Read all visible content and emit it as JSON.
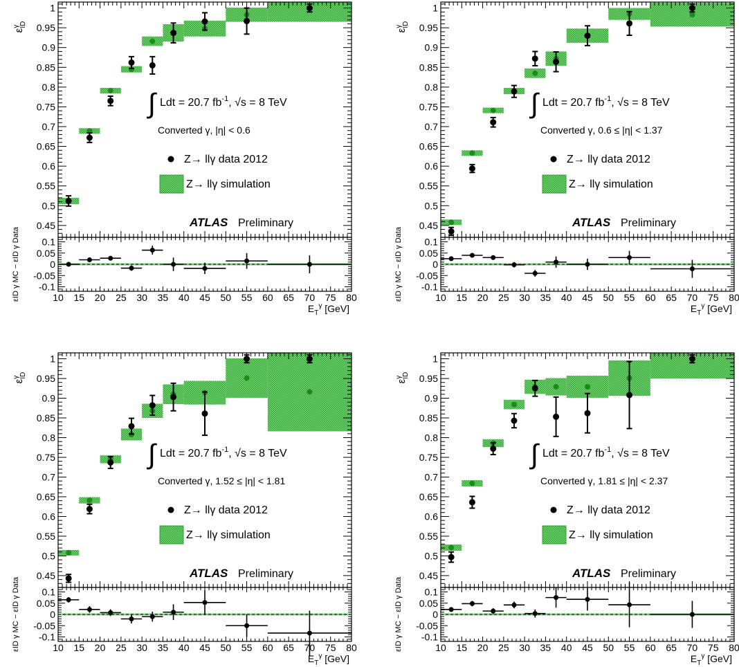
{
  "common": {
    "xlabel": "E_T^γ [GeV]",
    "ylabel_top": "ε_ID^γ",
    "ylabel_bottom": "ε_ID^{γ MC} − ε_ID^{γ Data}",
    "xlim": [
      10,
      80
    ],
    "ylim_top": [
      0.42,
      1.015
    ],
    "ylim_bottom": [
      -0.12,
      0.12
    ],
    "x_ticks": [
      "10",
      "15",
      "20",
      "25",
      "30",
      "35",
      "40",
      "45",
      "50",
      "55",
      "60",
      "65",
      "70",
      "75",
      "80"
    ],
    "y_ticks_top": [
      "0.45",
      "0.5",
      "0.55",
      "0.6",
      "0.65",
      "0.7",
      "0.75",
      "0.8",
      "0.85",
      "0.9",
      "0.95",
      "1"
    ],
    "y_ticks_bottom": [
      "-0.1",
      "-0.05",
      "0",
      "0.05",
      "0.1"
    ],
    "lumi_text": "Ldt = 20.7 fb",
    "lumi_sup": "-1",
    "energy_text": ", √s = 8 TeV",
    "legend_data": "Z→ llγ data 2012",
    "legend_sim": "Z→ llγ simulation",
    "atlas": "ATLAS",
    "preliminary": "Preliminary",
    "colors": {
      "data": "#000000",
      "mc_marker": "#1a8c1a",
      "band": "#6fd46f",
      "band_hatch": "#3aa83a",
      "baseline": "#7fcf7f"
    }
  },
  "chart_data": [
    {
      "type": "scatter",
      "category": "Converted γ, |η| < 0.6",
      "bins": [
        [
          10,
          15
        ],
        [
          15,
          20
        ],
        [
          20,
          25
        ],
        [
          25,
          30
        ],
        [
          30,
          35
        ],
        [
          35,
          40
        ],
        [
          40,
          50
        ],
        [
          50,
          60
        ],
        [
          60,
          80
        ]
      ],
      "x": [
        12.5,
        17.5,
        22.5,
        27.5,
        32.5,
        37.5,
        45,
        55,
        70
      ],
      "series": [
        {
          "name": "Z→ llγ data 2012",
          "values": [
            0.512,
            0.672,
            0.765,
            0.862,
            0.855,
            0.937,
            0.966,
            0.967,
            1.0
          ],
          "errors": [
            0.013,
            0.012,
            0.012,
            0.015,
            0.022,
            0.025,
            0.022,
            0.033,
            0.01
          ]
        },
        {
          "name": "Z→ llγ simulation",
          "values": [
            0.512,
            0.689,
            0.791,
            0.845,
            0.916,
            0.937,
            0.948,
            0.983,
            1.0
          ],
          "errors": [
            0.008,
            0.007,
            0.007,
            0.008,
            0.012,
            0.022,
            0.02,
            0.018,
            0.035
          ]
        }
      ],
      "ratio": {
        "values": [
          0.0,
          0.02,
          0.027,
          -0.017,
          0.063,
          0.0,
          -0.018,
          0.015,
          0.0
        ],
        "errors": [
          0.008,
          0.01,
          0.01,
          0.012,
          0.02,
          0.03,
          0.025,
          0.035,
          0.04
        ]
      }
    },
    {
      "type": "scatter",
      "category": "Converted γ,  0.6 ≤ |η| < 1.37",
      "bins": [
        [
          10,
          15
        ],
        [
          15,
          20
        ],
        [
          20,
          25
        ],
        [
          25,
          30
        ],
        [
          30,
          35
        ],
        [
          35,
          40
        ],
        [
          40,
          50
        ],
        [
          50,
          60
        ],
        [
          60,
          80
        ]
      ],
      "x": [
        12.5,
        17.5,
        22.5,
        27.5,
        32.5,
        37.5,
        45,
        55,
        70
      ],
      "series": [
        {
          "name": "Z→ llγ data 2012",
          "values": [
            0.435,
            0.594,
            0.711,
            0.789,
            0.872,
            0.864,
            0.93,
            0.961,
            1.0
          ],
          "errors": [
            0.01,
            0.01,
            0.012,
            0.015,
            0.018,
            0.025,
            0.025,
            0.03,
            0.01
          ]
        },
        {
          "name": "Z→ llγ simulation",
          "values": [
            0.458,
            0.633,
            0.741,
            0.79,
            0.835,
            0.872,
            0.93,
            0.985,
            0.983
          ],
          "errors": [
            0.007,
            0.007,
            0.007,
            0.008,
            0.012,
            0.018,
            0.018,
            0.015,
            0.03
          ]
        }
      ],
      "ratio": {
        "values": [
          0.025,
          0.04,
          0.03,
          -0.002,
          -0.04,
          0.01,
          0.0,
          0.03,
          -0.02
        ],
        "errors": [
          0.008,
          0.008,
          0.01,
          0.012,
          0.015,
          0.025,
          0.025,
          0.03,
          0.04
        ]
      }
    },
    {
      "type": "scatter",
      "category": "Converted γ, 1.52 ≤ |η| < 1.81",
      "bins": [
        [
          10,
          15
        ],
        [
          15,
          20
        ],
        [
          20,
          25
        ],
        [
          25,
          30
        ],
        [
          30,
          35
        ],
        [
          35,
          40
        ],
        [
          40,
          50
        ],
        [
          50,
          60
        ],
        [
          60,
          80
        ]
      ],
      "x": [
        12.5,
        17.5,
        22.5,
        27.5,
        32.5,
        37.5,
        45,
        55,
        70
      ],
      "series": [
        {
          "name": "Z→ llγ data 2012",
          "values": [
            0.443,
            0.619,
            0.737,
            0.829,
            0.882,
            0.903,
            0.861,
            1.0,
            1.0
          ],
          "errors": [
            0.01,
            0.012,
            0.015,
            0.02,
            0.025,
            0.035,
            0.055,
            0.01,
            0.01
          ]
        },
        {
          "name": "Z→ llγ simulation",
          "values": [
            0.508,
            0.641,
            0.745,
            0.808,
            0.868,
            0.91,
            0.914,
            0.951,
            0.916
          ],
          "errors": [
            0.007,
            0.008,
            0.01,
            0.015,
            0.018,
            0.025,
            0.03,
            0.05,
            0.1
          ]
        }
      ],
      "ratio": {
        "values": [
          0.065,
          0.022,
          0.008,
          -0.02,
          -0.01,
          0.01,
          0.053,
          -0.05,
          -0.083
        ],
        "errors": [
          0.012,
          0.015,
          0.015,
          0.02,
          0.022,
          0.035,
          0.055,
          0.05,
          0.1
        ]
      }
    },
    {
      "type": "scatter",
      "category": "Converted γ, 1.81 ≤ |η| < 2.37",
      "bins": [
        [
          10,
          15
        ],
        [
          15,
          20
        ],
        [
          20,
          25
        ],
        [
          25,
          30
        ],
        [
          30,
          35
        ],
        [
          35,
          40
        ],
        [
          40,
          50
        ],
        [
          50,
          60
        ],
        [
          60,
          80
        ]
      ],
      "x": [
        12.5,
        17.5,
        22.5,
        27.5,
        32.5,
        37.5,
        45,
        55,
        70
      ],
      "series": [
        {
          "name": "Z→ llγ data 2012",
          "values": [
            0.497,
            0.636,
            0.772,
            0.843,
            0.925,
            0.853,
            0.862,
            0.908,
            1.0
          ],
          "errors": [
            0.013,
            0.015,
            0.015,
            0.018,
            0.02,
            0.05,
            0.05,
            0.085,
            0.01
          ]
        },
        {
          "name": "Z→ llγ simulation",
          "values": [
            0.521,
            0.684,
            0.786,
            0.884,
            0.929,
            0.929,
            0.929,
            0.951,
            1.0
          ],
          "errors": [
            0.008,
            0.008,
            0.01,
            0.012,
            0.018,
            0.022,
            0.028,
            0.045,
            0.05
          ]
        }
      ],
      "ratio": {
        "values": [
          0.022,
          0.048,
          0.015,
          0.042,
          0.004,
          0.075,
          0.067,
          0.043,
          0.0
        ],
        "errors": [
          0.01,
          0.012,
          0.013,
          0.015,
          0.018,
          0.045,
          0.05,
          0.1,
          0.06
        ]
      }
    }
  ]
}
